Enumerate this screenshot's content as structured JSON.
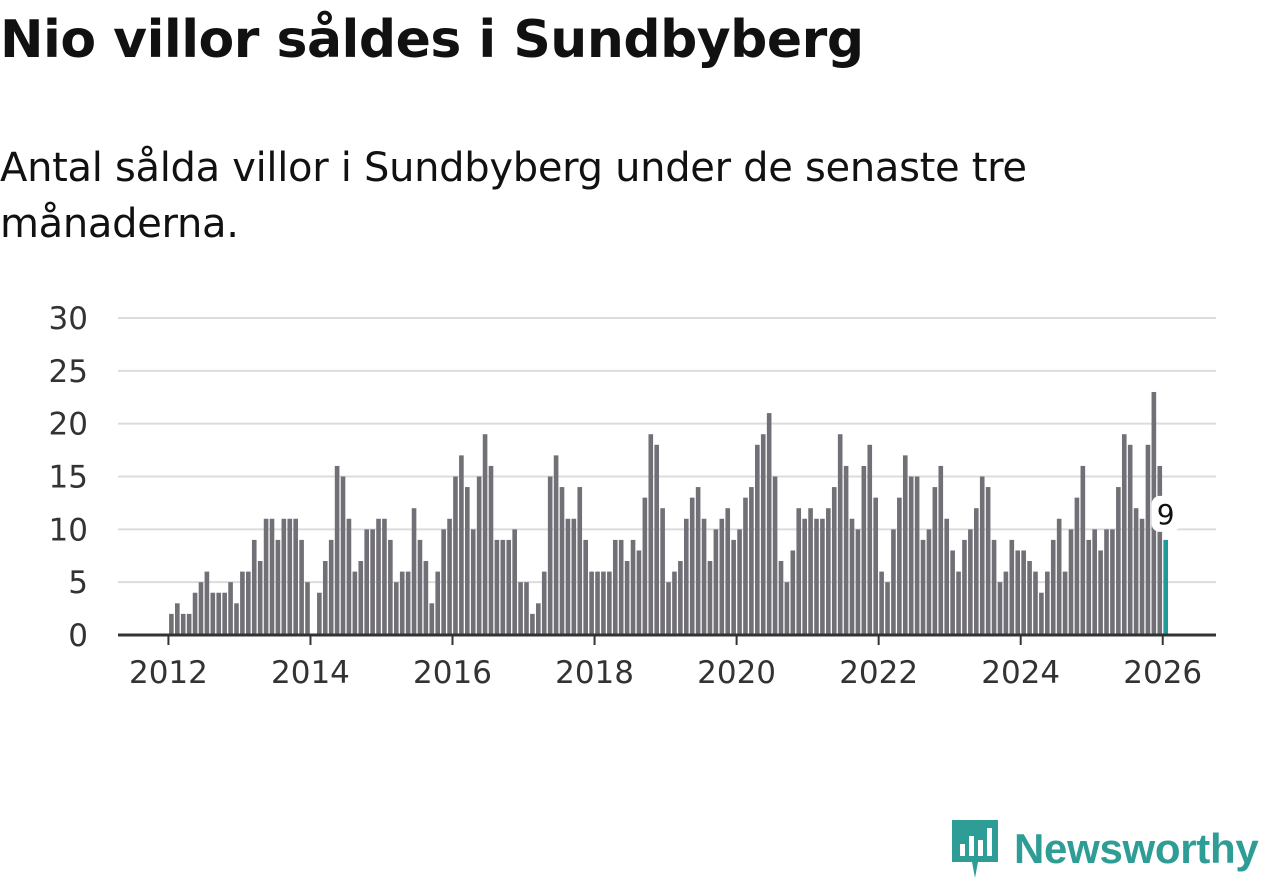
{
  "header": {
    "title": "Nio villor såldes i Sundbyberg",
    "subtitle": "Antal sålda villor i Sundbyberg under de senaste tre månaderna."
  },
  "brand": {
    "name": "Newsworthy",
    "color": "#2e9d95"
  },
  "colors": {
    "bar": "#727077",
    "highlight": "#1f9a99",
    "grid": "#dcdcdc",
    "axis": "#333333"
  },
  "chart_data": {
    "type": "bar",
    "title": "Nio villor såldes i Sundbyberg",
    "subtitle": "Antal sålda villor i Sundbyberg under de senaste tre månaderna.",
    "xlabel": "",
    "ylabel": "",
    "ylim": [
      0,
      30
    ],
    "yticks": [
      0,
      5,
      10,
      15,
      20,
      25,
      30
    ],
    "xlim": [
      2011.29,
      2026.75
    ],
    "xticks": [
      2012,
      2014,
      2016,
      2018,
      2020,
      2022,
      2024,
      2026
    ],
    "xtick_labels": [
      "2012",
      "2014",
      "2016",
      "2018",
      "2020",
      "2022",
      "2024",
      "2026"
    ],
    "grid": true,
    "start_year": 2012,
    "highlight_label": "9",
    "values": [
      2,
      3,
      2,
      2,
      4,
      5,
      6,
      4,
      4,
      4,
      5,
      3,
      6,
      6,
      9,
      7,
      11,
      11,
      9,
      11,
      11,
      11,
      9,
      5,
      0,
      4,
      7,
      9,
      16,
      15,
      11,
      6,
      7,
      10,
      10,
      11,
      11,
      9,
      5,
      6,
      6,
      12,
      9,
      7,
      3,
      6,
      10,
      11,
      15,
      17,
      14,
      10,
      15,
      19,
      16,
      9,
      9,
      9,
      10,
      5,
      5,
      2,
      3,
      6,
      15,
      17,
      14,
      11,
      11,
      14,
      9,
      6,
      6,
      6,
      6,
      9,
      9,
      7,
      9,
      8,
      13,
      19,
      18,
      12,
      5,
      6,
      7,
      11,
      13,
      14,
      11,
      7,
      10,
      11,
      12,
      9,
      10,
      13,
      14,
      18,
      19,
      21,
      15,
      7,
      5,
      8,
      12,
      11,
      12,
      11,
      11,
      12,
      14,
      19,
      16,
      11,
      10,
      16,
      18,
      13,
      6,
      5,
      10,
      13,
      17,
      15,
      15,
      9,
      10,
      14,
      16,
      11,
      8,
      6,
      9,
      10,
      12,
      15,
      14,
      9,
      5,
      6,
      9,
      8,
      8,
      7,
      6,
      4,
      6,
      9,
      11,
      6,
      10,
      13,
      16,
      9,
      10,
      8,
      10,
      10,
      14,
      19,
      18,
      12,
      11,
      18,
      23,
      16,
      9
    ]
  }
}
